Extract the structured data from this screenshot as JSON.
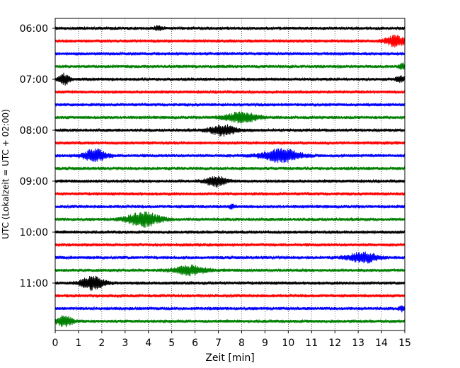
{
  "chart_data": {
    "type": "line",
    "subtype": "helicorder",
    "xlabel": "Zeit  [min]",
    "ylabel": "UTC (Lokalzeit = UTC + 02:00)",
    "xlim": [
      0,
      15
    ],
    "x_ticks": [
      0,
      1,
      2,
      3,
      4,
      5,
      6,
      7,
      8,
      9,
      10,
      11,
      12,
      13,
      14,
      15
    ],
    "y_tick_labels": [
      "06:00",
      "07:00",
      "08:00",
      "09:00",
      "10:00",
      "11:00"
    ],
    "y_tick_rows": [
      0,
      4,
      8,
      12,
      16,
      20
    ],
    "grid": "vertical dotted at each minute",
    "trace_interval_minutes": 15,
    "trace_colors": [
      "#000000",
      "#ff0000",
      "#0000ff",
      "#008000"
    ],
    "traces": [
      {
        "start": "06:00",
        "events": [
          {
            "t": 4.4,
            "amp": 0.35,
            "width": 0.25
          }
        ]
      },
      {
        "start": "06:15",
        "events": [
          {
            "t": 14.6,
            "amp": 1.0,
            "width": 0.6
          }
        ]
      },
      {
        "start": "06:30",
        "events": []
      },
      {
        "start": "06:45",
        "events": [
          {
            "t": 14.9,
            "amp": 0.5,
            "width": 0.2
          }
        ]
      },
      {
        "start": "07:00",
        "events": [
          {
            "t": 0.4,
            "amp": 1.0,
            "width": 0.35
          },
          {
            "t": 14.8,
            "amp": 0.6,
            "width": 0.25
          }
        ]
      },
      {
        "start": "07:15",
        "events": []
      },
      {
        "start": "07:30",
        "events": []
      },
      {
        "start": "07:45",
        "events": [
          {
            "t": 8.0,
            "amp": 0.95,
            "width": 1.0
          }
        ]
      },
      {
        "start": "08:00",
        "events": [
          {
            "t": 7.2,
            "amp": 1.0,
            "width": 0.8
          }
        ]
      },
      {
        "start": "08:15",
        "events": []
      },
      {
        "start": "08:30",
        "events": [
          {
            "t": 1.7,
            "amp": 1.2,
            "width": 0.7
          },
          {
            "t": 9.7,
            "amp": 1.3,
            "width": 1.1
          }
        ]
      },
      {
        "start": "08:45",
        "events": []
      },
      {
        "start": "09:00",
        "events": [
          {
            "t": 6.9,
            "amp": 1.0,
            "width": 0.6
          }
        ]
      },
      {
        "start": "09:15",
        "events": []
      },
      {
        "start": "09:30",
        "events": [
          {
            "t": 7.6,
            "amp": 0.4,
            "width": 0.15
          }
        ]
      },
      {
        "start": "09:45",
        "events": [
          {
            "t": 3.8,
            "amp": 1.4,
            "width": 1.0
          }
        ]
      },
      {
        "start": "10:00",
        "events": []
      },
      {
        "start": "10:15",
        "events": []
      },
      {
        "start": "10:30",
        "events": [
          {
            "t": 13.2,
            "amp": 1.0,
            "width": 0.9
          }
        ]
      },
      {
        "start": "10:45",
        "events": [
          {
            "t": 5.8,
            "amp": 0.9,
            "width": 0.9
          }
        ]
      },
      {
        "start": "11:00",
        "events": [
          {
            "t": 1.6,
            "amp": 1.3,
            "width": 0.7
          }
        ]
      },
      {
        "start": "11:15",
        "events": []
      },
      {
        "start": "11:30",
        "events": [
          {
            "t": 14.9,
            "amp": 0.45,
            "width": 0.2
          }
        ]
      },
      {
        "start": "11:45",
        "events": [
          {
            "t": 0.4,
            "amp": 1.0,
            "width": 0.5
          }
        ]
      }
    ]
  }
}
